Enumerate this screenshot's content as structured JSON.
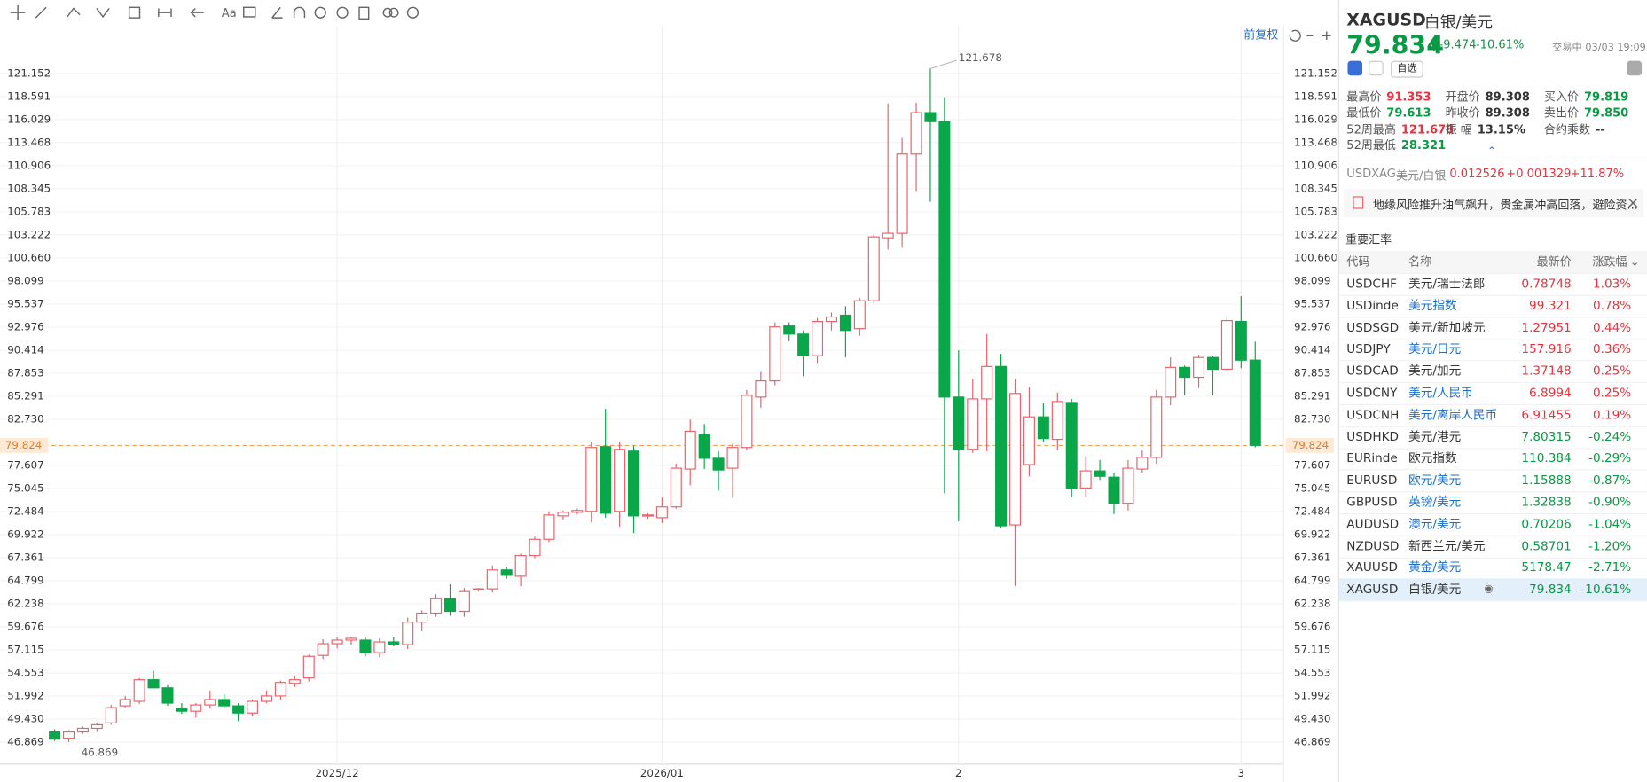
{
  "chart_data": {
    "type": "candlestick",
    "up_color": "#e8636b",
    "down_color": "#0aa64a",
    "grid": true,
    "categories": [
      null,
      null,
      null,
      null,
      null,
      null,
      null,
      null,
      null,
      null,
      null,
      null,
      null,
      null,
      null,
      null,
      null,
      null,
      null,
      null,
      "2025/12",
      null,
      null,
      null,
      null,
      null,
      null,
      null,
      null,
      null,
      null,
      null,
      null,
      null,
      null,
      null,
      null,
      null,
      null,
      null,
      null,
      null,
      null,
      "2026/01",
      null,
      null,
      null,
      null,
      null,
      null,
      null,
      null,
      null,
      null,
      null,
      null,
      null,
      null,
      null,
      null,
      null,
      null,
      null,
      null,
      "2",
      null,
      null,
      null,
      null,
      null,
      null,
      null,
      null,
      null,
      null,
      null,
      null,
      null,
      null,
      null,
      null,
      null,
      null,
      null,
      "3",
      null
    ],
    "open": [
      48.0,
      47.3,
      48.0,
      48.4,
      49.0,
      50.9,
      51.4,
      53.8,
      52.9,
      50.6,
      50.3,
      51.0,
      51.6,
      50.9,
      50.1,
      51.4,
      52.0,
      53.4,
      54.0,
      56.5,
      57.8,
      58.2,
      58.2,
      56.8,
      58.0,
      57.7,
      60.2,
      61.2,
      62.8,
      61.4,
      63.8,
      63.9,
      66.0,
      65.3,
      67.6,
      69.4,
      72.0,
      72.4,
      72.5,
      79.7,
      72.5,
      79.2,
      72.0,
      71.8,
      73.0,
      77.2,
      81.0,
      78.4,
      77.3,
      79.6,
      85.2,
      87.0,
      93.1,
      92.2,
      89.8,
      93.6,
      94.3,
      92.8,
      95.9,
      102.9,
      103.4,
      112.2,
      116.8,
      115.8,
      85.2,
      79.4,
      85.0,
      88.6,
      71.0,
      77.7,
      83.0,
      80.5,
      84.6,
      75.1,
      77.0,
      76.3,
      73.4,
      77.2,
      78.5,
      85.2,
      88.5,
      87.4,
      89.6,
      88.3,
      93.6,
      89.308
    ],
    "high": [
      48.3,
      48.2,
      48.6,
      49.0,
      51.0,
      52.0,
      54.0,
      54.8,
      53.2,
      51.2,
      51.2,
      52.6,
      52.2,
      51.2,
      51.6,
      52.6,
      53.7,
      54.2,
      56.6,
      58.3,
      58.5,
      58.6,
      58.5,
      58.4,
      58.5,
      60.7,
      61.5,
      63.3,
      64.4,
      64.0,
      64.0,
      66.5,
      66.3,
      67.8,
      69.7,
      72.5,
      72.6,
      72.8,
      80.2,
      83.9,
      80.2,
      79.8,
      72.3,
      74.1,
      77.8,
      82.7,
      82.2,
      79.2,
      80.0,
      86.0,
      88.0,
      93.5,
      93.5,
      92.6,
      94.0,
      94.6,
      95.3,
      96.2,
      103.3,
      117.8,
      114.0,
      117.9,
      121.678,
      118.5,
      90.4,
      87.2,
      92.2,
      90.0,
      87.2,
      86.3,
      84.5,
      85.7,
      85.0,
      78.6,
      78.2,
      76.8,
      78.2,
      79.3,
      86.0,
      89.6,
      88.7,
      89.9,
      89.8,
      94.1,
      96.4,
      91.353
    ],
    "low": [
      47.0,
      46.869,
      47.8,
      48.0,
      48.8,
      50.7,
      51.1,
      52.9,
      50.9,
      50.0,
      49.6,
      50.6,
      50.7,
      49.2,
      49.8,
      51.2,
      51.6,
      53.0,
      53.6,
      56.1,
      57.3,
      57.7,
      56.4,
      56.3,
      57.5,
      57.2,
      59.2,
      60.8,
      60.9,
      60.8,
      63.6,
      63.5,
      65.0,
      64.2,
      67.3,
      69.1,
      71.6,
      72.2,
      71.3,
      71.8,
      70.8,
      70.1,
      71.7,
      71.2,
      72.8,
      75.4,
      77.2,
      74.8,
      74.0,
      79.3,
      84.0,
      86.5,
      91.4,
      87.5,
      89.0,
      92.6,
      89.6,
      92.0,
      95.6,
      101.6,
      101.8,
      108.1,
      106.9,
      74.5,
      71.4,
      79.0,
      79.2,
      70.7,
      64.2,
      76.4,
      80.2,
      79.3,
      74.1,
      74.1,
      76.0,
      72.2,
      72.6,
      76.8,
      77.8,
      84.3,
      85.4,
      86.2,
      85.4,
      88.0,
      88.4,
      79.613
    ],
    "close": [
      47.2,
      48.0,
      48.4,
      48.8,
      50.7,
      51.6,
      53.8,
      52.9,
      51.2,
      50.3,
      51.0,
      51.6,
      50.9,
      50.1,
      51.4,
      52.0,
      53.5,
      53.8,
      56.4,
      57.8,
      58.2,
      58.4,
      56.8,
      58.0,
      57.7,
      60.2,
      61.2,
      62.8,
      61.4,
      63.6,
      63.9,
      66.0,
      65.4,
      67.6,
      69.4,
      72.1,
      72.4,
      72.6,
      79.6,
      72.3,
      79.4,
      72.0,
      72.1,
      73.0,
      77.3,
      81.4,
      78.4,
      77.1,
      79.6,
      85.4,
      87.0,
      93.0,
      92.2,
      89.8,
      93.6,
      94.1,
      92.6,
      95.9,
      103.0,
      103.4,
      112.2,
      116.8,
      115.8,
      85.2,
      79.4,
      85.0,
      88.6,
      70.9,
      85.6,
      83.0,
      80.6,
      84.7,
      75.1,
      77.0,
      76.4,
      73.4,
      77.3,
      78.5,
      85.2,
      88.5,
      87.4,
      89.6,
      88.3,
      93.7,
      89.3,
      79.834
    ],
    "ylim": [
      44.42,
      126.4
    ],
    "yticks": [
      46.869,
      {
        "value": 49.43,
        "label": "49.430"
      },
      51.992,
      54.553,
      57.115,
      59.676,
      62.238,
      64.799,
      67.361,
      69.922,
      72.484,
      75.045,
      77.607,
      {
        "value": 82.73,
        "label": "82.730"
      },
      85.291,
      87.853,
      90.414,
      92.976,
      95.537,
      98.099,
      {
        "value": 100.66,
        "label": "100.660"
      },
      103.222,
      105.783,
      108.345,
      110.906,
      113.468,
      116.029,
      118.591,
      121.152
    ],
    "price_line": 79.824,
    "annotations": {
      "high": 121.678,
      "low": 46.869
    }
  },
  "toolbar": {
    "font": "Aa",
    "adjust": "前复权"
  },
  "quote": {
    "code": "XAGUSD",
    "name": "白银/美元",
    "price": "79.834",
    "change": "-9.474",
    "pct": "-10.61%",
    "status": "交易中 03/03 19:09",
    "watch": "自选",
    "stats": [
      {
        "label": "最高价",
        "value": "91.353",
        "tone": "up"
      },
      {
        "label": "开盘价",
        "value": "89.308",
        "tone": "flat"
      },
      {
        "label": "买入价",
        "value": "79.819",
        "tone": "down"
      },
      {
        "label": "最低价",
        "value": "79.613",
        "tone": "down"
      },
      {
        "label": "昨收价",
        "value": "89.308",
        "tone": "flat"
      },
      {
        "label": "卖出价",
        "value": "79.850",
        "tone": "down"
      },
      {
        "label": "52周最高",
        "value": "121.678",
        "tone": "up"
      },
      {
        "label": "振 幅",
        "value": "13.15%",
        "tone": "flat"
      },
      {
        "label": "合约乘数",
        "value": "--",
        "tone": "flat"
      },
      {
        "label": "52周最低",
        "value": "28.321",
        "tone": "down"
      }
    ],
    "inverse": {
      "code": "USDXAG",
      "name": "美元/白银",
      "price": "0.012526",
      "change": "+0.001329",
      "pct": "+11.87%"
    },
    "news": "地缘风险推升油气飙升，贵金属冲高回落，避险资..."
  },
  "table": {
    "title": "重要汇率",
    "headers": [
      "代码",
      "名称",
      "最新价",
      "涨跌幅"
    ],
    "rows": [
      {
        "code": "USDCHF",
        "name": "美元/瑞士法郎",
        "price": "0.78748",
        "change": "1.03%",
        "link": false
      },
      {
        "code": "USDinde",
        "name": "美元指数",
        "price": "99.321",
        "change": "0.78%",
        "link": true
      },
      {
        "code": "USDSGD",
        "name": "美元/新加坡元",
        "price": "1.27951",
        "change": "0.44%",
        "link": false
      },
      {
        "code": "USDJPY",
        "name": "美元/日元",
        "price": "157.916",
        "change": "0.36%",
        "link": true
      },
      {
        "code": "USDCAD",
        "name": "美元/加元",
        "price": "1.37148",
        "change": "0.25%",
        "link": false
      },
      {
        "code": "USDCNY",
        "name": "美元/人民币",
        "price": "6.8994",
        "change": "0.25%",
        "link": true
      },
      {
        "code": "USDCNH",
        "name": "美元/离岸人民币",
        "price": "6.91455",
        "change": "0.19%",
        "link": true
      },
      {
        "code": "USDHKD",
        "name": "美元/港元",
        "price": "7.80315",
        "change": "-0.24%",
        "link": false
      },
      {
        "code": "EURinde",
        "name": "欧元指数",
        "price": "110.384",
        "change": "-0.29%",
        "link": false
      },
      {
        "code": "EURUSD",
        "name": "欧元/美元",
        "price": "1.15888",
        "change": "-0.87%",
        "link": true
      },
      {
        "code": "GBPUSD",
        "name": "英镑/美元",
        "price": "1.32838",
        "change": "-0.90%",
        "link": true
      },
      {
        "code": "AUDUSD",
        "name": "澳元/美元",
        "price": "0.70206",
        "change": "-1.04%",
        "link": true
      },
      {
        "code": "NZDUSD",
        "name": "新西兰元/美元",
        "price": "0.58701",
        "change": "-1.20%",
        "link": false
      },
      {
        "code": "XAUUSD",
        "name": "黄金/美元",
        "price": "5178.47",
        "change": "-2.71%",
        "link": true
      },
      {
        "code": "XAGUSD",
        "name": "白银/美元",
        "price": "79.834",
        "change": "-10.61%",
        "link": false,
        "selected": true
      }
    ]
  }
}
